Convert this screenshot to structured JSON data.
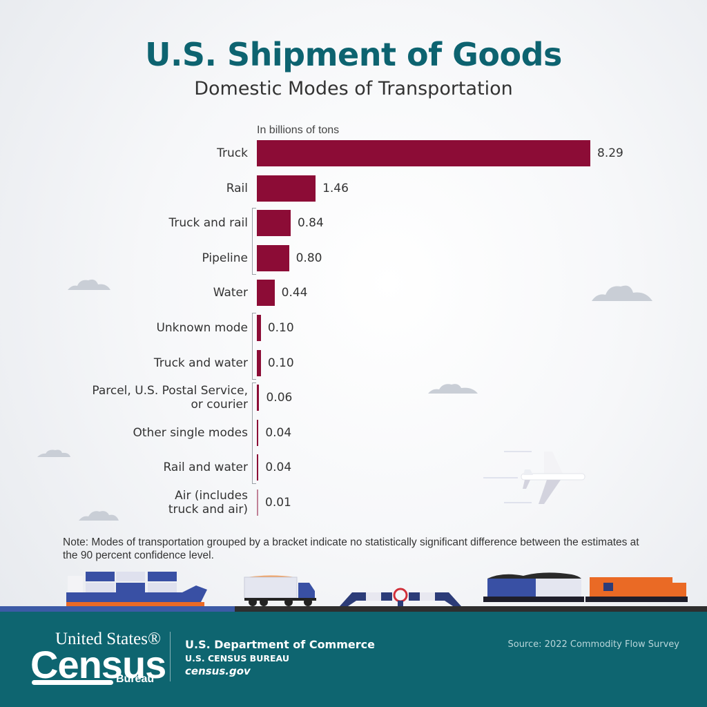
{
  "header": {
    "title": "U.S. Shipment of Goods",
    "subtitle": "Domestic Modes of Transportation"
  },
  "chart_data": {
    "type": "bar",
    "orientation": "horizontal",
    "title": "U.S. Shipment of Goods",
    "subtitle": "Domestic Modes of Transportation",
    "unit_label": "In billions of tons",
    "xlabel": "",
    "ylabel": "",
    "xlim": [
      0,
      8.29
    ],
    "grid": false,
    "bar_color": "#8c0c36",
    "categories": [
      "Truck",
      "Rail",
      "Truck and rail",
      "Pipeline",
      "Water",
      "Unknown mode",
      "Truck and water",
      "Parcel, U.S. Postal Service, or courier",
      "Other single modes",
      "Rail and water",
      "Air (includes truck and air)"
    ],
    "label_lines": [
      [
        "Truck"
      ],
      [
        "Rail"
      ],
      [
        "Truck and rail"
      ],
      [
        "Pipeline"
      ],
      [
        "Water"
      ],
      [
        "Unknown mode"
      ],
      [
        "Truck and water"
      ],
      [
        "Parcel, U.S. Postal Service,",
        "or courier"
      ],
      [
        "Other single modes"
      ],
      [
        "Rail and water"
      ],
      [
        "Air (includes",
        "truck and air)"
      ]
    ],
    "values": [
      8.29,
      1.46,
      0.84,
      0.8,
      0.44,
      0.1,
      0.1,
      0.06,
      0.04,
      0.04,
      0.01
    ],
    "value_labels": [
      "8.29",
      "1.46",
      "0.84",
      "0.80",
      "0.44",
      "0.10",
      "0.10",
      "0.06",
      "0.04",
      "0.04",
      "0.01"
    ],
    "brackets": [
      {
        "from": "Truck and rail",
        "to": "Pipeline"
      },
      {
        "from": "Unknown mode",
        "to": "Truck and water"
      },
      {
        "from": "Parcel, U.S. Postal Service, or courier",
        "to": "Rail and water"
      }
    ]
  },
  "note": "Note: Modes of transportation grouped by a bracket indicate no statistically significant difference between the estimates at the 90 percent confidence level.",
  "footer": {
    "logo_line1": "United States®",
    "logo_line2": "Census",
    "logo_line3": "Bureau",
    "department": "U.S. Department of Commerce",
    "bureau": "U.S. CENSUS BUREAU",
    "website": "census.gov",
    "source": "Source: 2022 Commodity Flow Survey"
  },
  "colors": {
    "title": "#0d6370",
    "bar": "#8c0c36",
    "footer_bg": "#0e6570"
  }
}
